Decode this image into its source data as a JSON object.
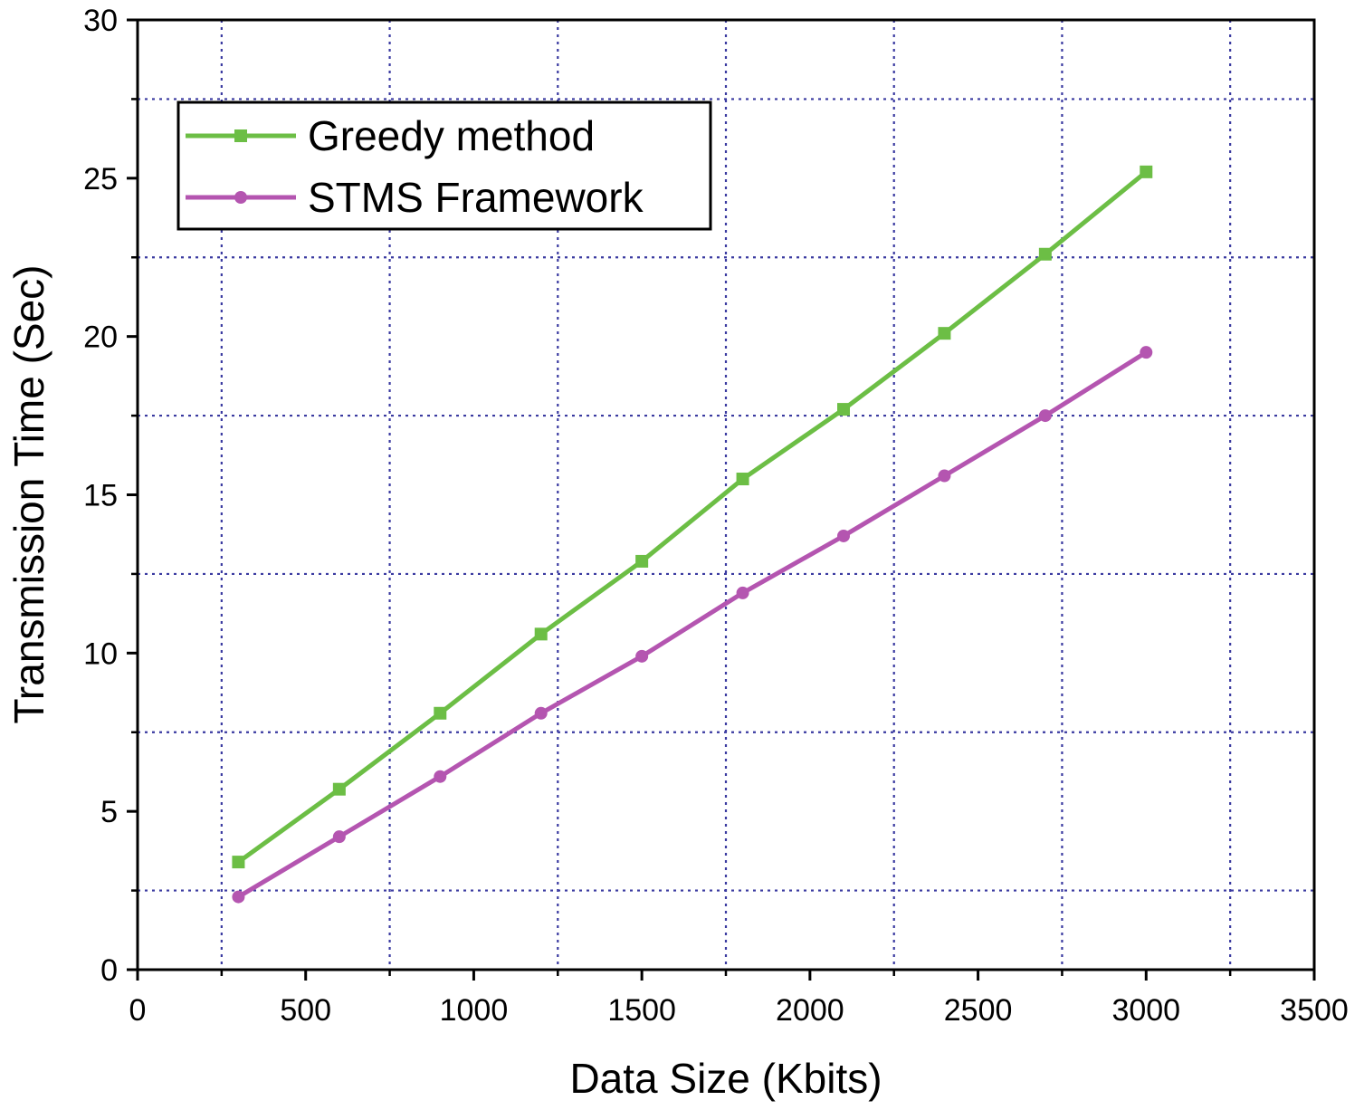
{
  "chart_data": {
    "type": "line",
    "title": "",
    "xlabel": "Data Size (Kbits)",
    "ylabel": "Transmission Time (Sec)",
    "xlim": [
      0,
      3500
    ],
    "ylim": [
      0,
      30
    ],
    "x_ticks": [
      "0",
      "500",
      "1000",
      "1500",
      "2000",
      "2500",
      "3000",
      "3500"
    ],
    "y_ticks": [
      "0",
      "5",
      "10",
      "15",
      "20",
      "25",
      "30"
    ],
    "grid": true,
    "legend_position": "top-left",
    "x": [
      300,
      600,
      900,
      1200,
      1500,
      1800,
      2100,
      2400,
      2700,
      3000
    ],
    "series": [
      {
        "name": "Greedy method",
        "color": "#6cbe45",
        "marker": "square",
        "values": [
          3.4,
          5.7,
          8.1,
          10.6,
          12.9,
          15.5,
          17.7,
          20.1,
          22.6,
          25.2
        ]
      },
      {
        "name": "STMS Framework",
        "color": "#b455b0",
        "marker": "circle",
        "values": [
          2.3,
          4.2,
          6.1,
          8.1,
          9.9,
          11.9,
          13.7,
          15.6,
          17.5,
          19.5
        ]
      }
    ],
    "colors": {
      "grid": "#3a3aa0",
      "axis": "#000000"
    }
  }
}
